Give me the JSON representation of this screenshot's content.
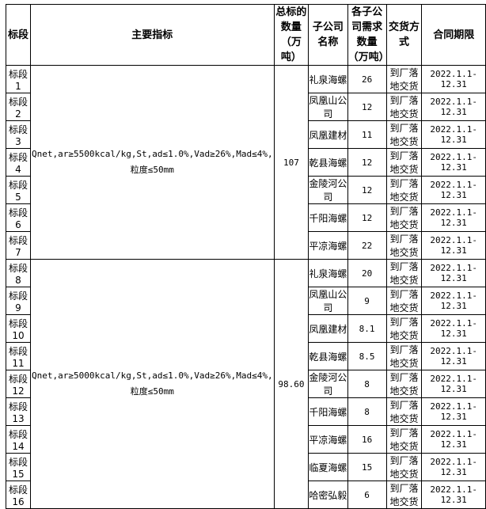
{
  "headers": [
    "标段",
    "主要指标",
    "总标的数量（万吨）",
    "子公司名称",
    "各子公司需求数量（万吨）",
    "交货方式",
    "合同期限"
  ],
  "groups": [
    {
      "spec": "Qnet,ar≥5500kcal/kg,St,ad≤1.0%,Vad≥26%,Mad≤4%,粒度≤50mm",
      "total": "107",
      "rows": [
        [
          "标段 1",
          "礼泉海螺",
          "26",
          "到厂落地交货",
          "2022.1.1-12.31"
        ],
        [
          "标段 2",
          "凤凰山公司",
          "12",
          "到厂落地交货",
          "2022.1.1-12.31"
        ],
        [
          "标段 3",
          "凤凰建材",
          "11",
          "到厂落地交货",
          "2022.1.1-12.31"
        ],
        [
          "标段 4",
          "乾县海螺",
          "12",
          "到厂落地交货",
          "2022.1.1-12.31"
        ],
        [
          "标段 5",
          "金陵河公司",
          "12",
          "到厂落地交货",
          "2022.1.1-12.31"
        ],
        [
          "标段 6",
          "千阳海螺",
          "12",
          "到厂落地交货",
          "2022.1.1-12.31"
        ],
        [
          "标段 7",
          "平凉海螺",
          "22",
          "到厂落地交货",
          "2022.1.1-12.31"
        ]
      ]
    },
    {
      "spec": "Qnet,ar≥5000kcal/kg,St,ad≤1.0%,Vad≥26%,Mad≤4%,粒度≤50mm",
      "total": "98.60",
      "rows": [
        [
          "标段 8",
          "礼泉海螺",
          "20",
          "到厂落地交货",
          "2022.1.1-12.31"
        ],
        [
          "标段 9",
          "凤凰山公司",
          "9",
          "到厂落地交货",
          "2022.1.1-12.31"
        ],
        [
          "标段 10",
          "凤凰建材",
          "8.1",
          "到厂落地交货",
          "2022.1.1-12.31"
        ],
        [
          "标段 11",
          "乾县海螺",
          "8.5",
          "到厂落地交货",
          "2022.1.1-12.31"
        ],
        [
          "标段 12",
          "金陵河公司",
          "8",
          "到厂落地交货",
          "2022.1.1-12.31"
        ],
        [
          "标段 13",
          "千阳海螺",
          "8",
          "到厂落地交货",
          "2022.1.1-12.31"
        ],
        [
          "标段 14",
          "平凉海螺",
          "16",
          "到厂落地交货",
          "2022.1.1-12.31"
        ],
        [
          "标段 15",
          "临夏海螺",
          "15",
          "到厂落地交货",
          "2022.1.1-12.31"
        ],
        [
          "标段 16",
          "哈密弘毅",
          "6",
          "到厂落地交货",
          "2022.1.1-12.31"
        ]
      ]
    }
  ]
}
